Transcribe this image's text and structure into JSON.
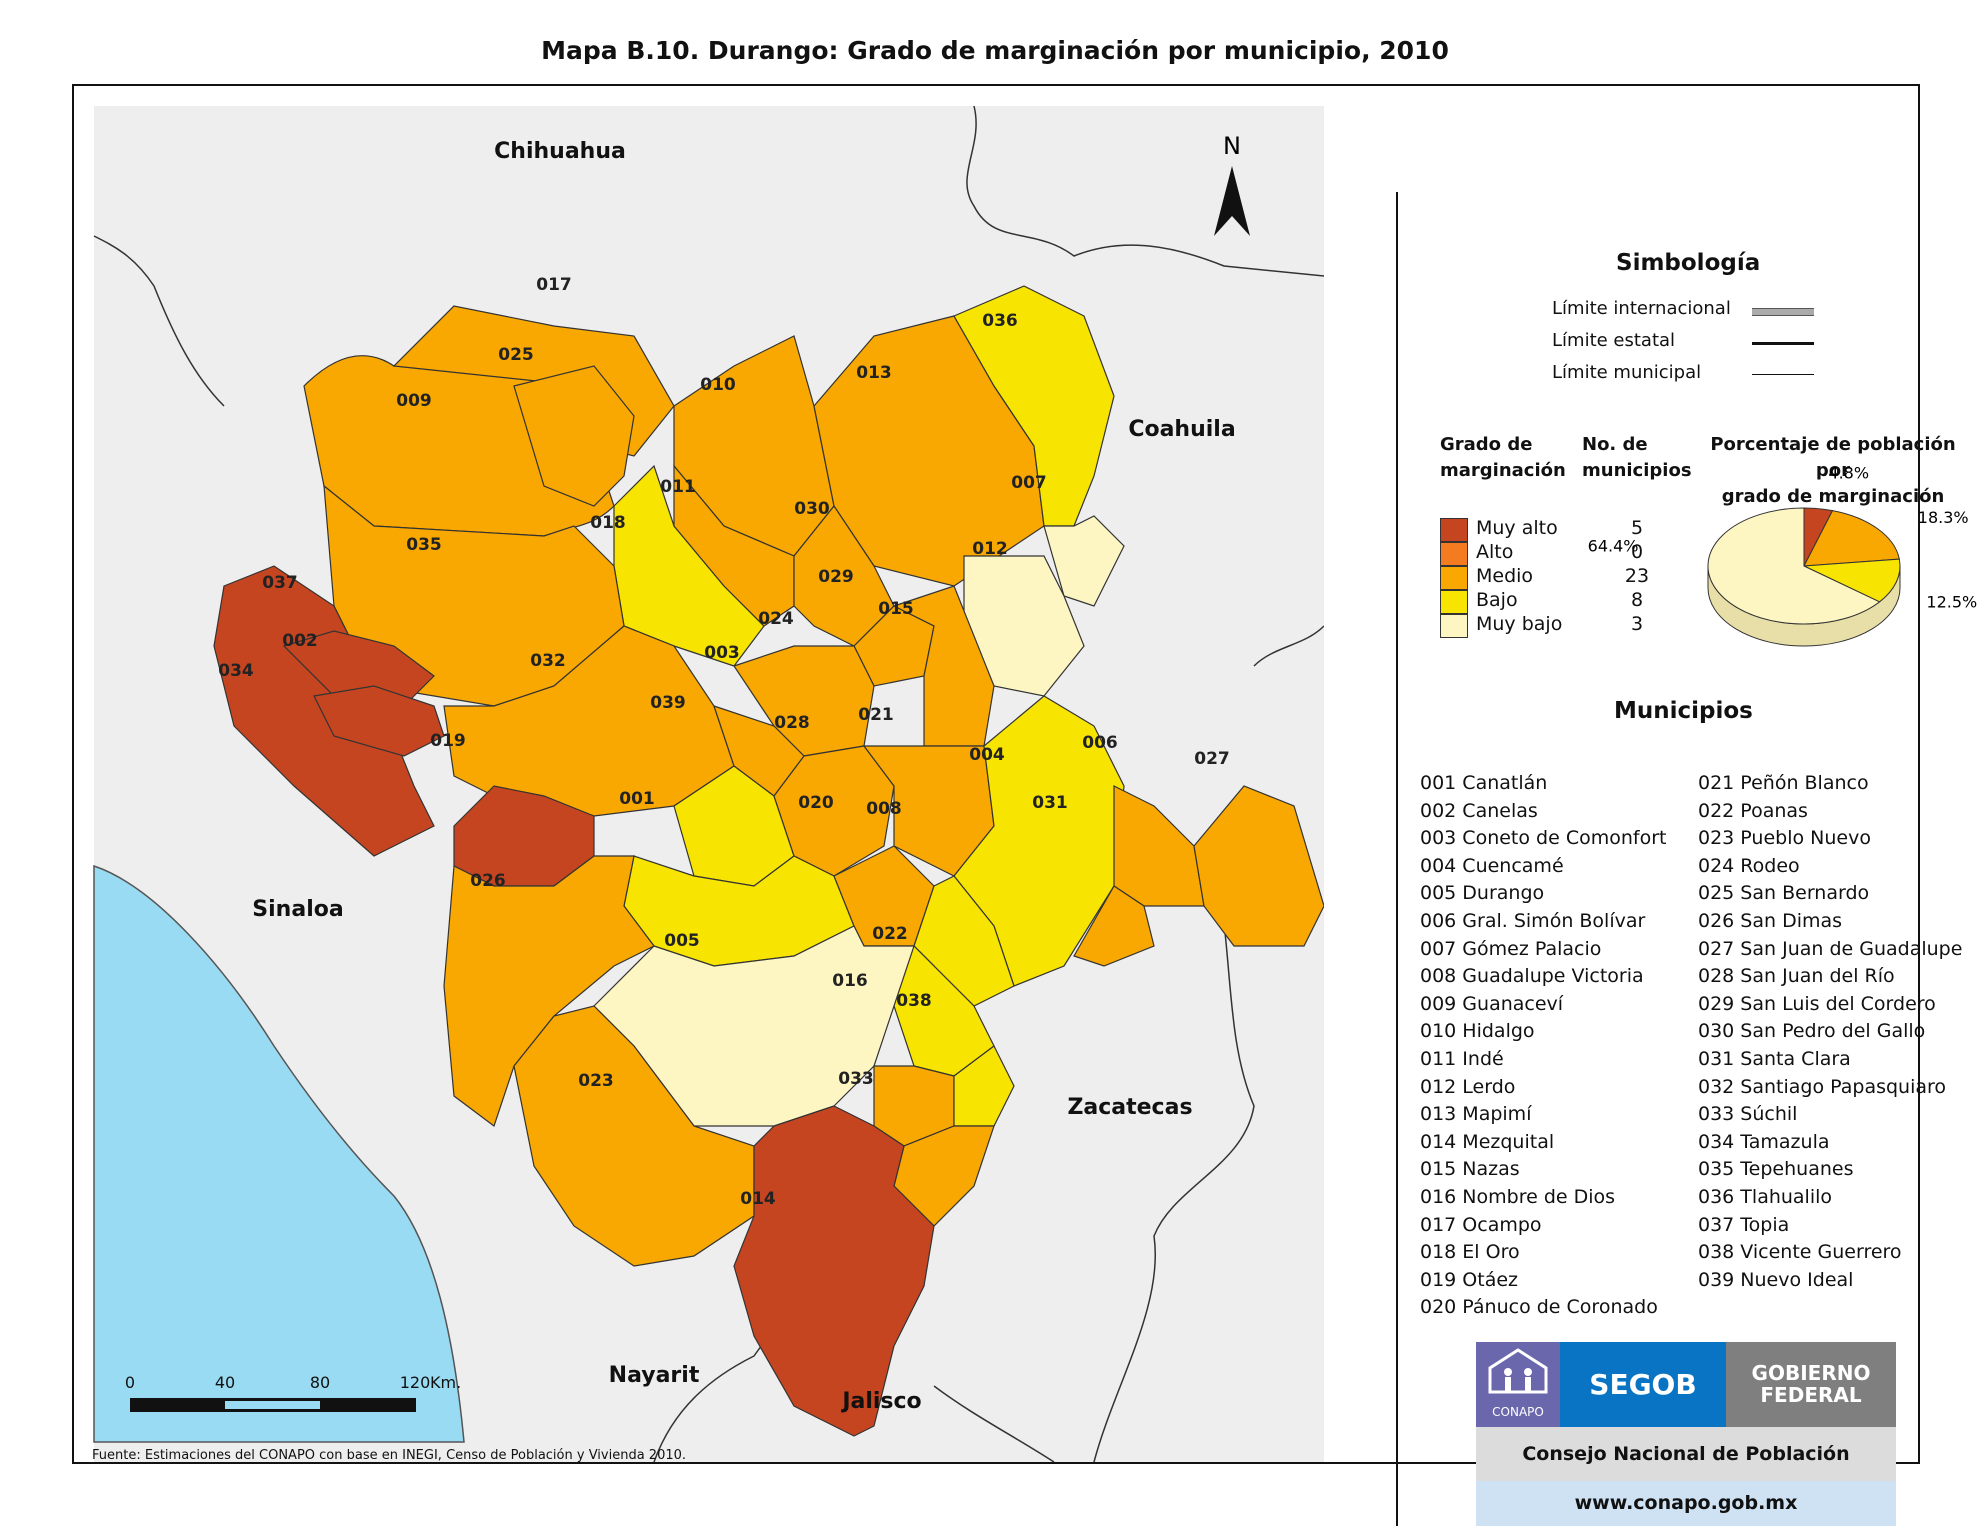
{
  "title": "Mapa B.10. Durango: Grado de marginación por municipio, 2010",
  "source": "Fuente: Estimaciones del CONAPO con base en INEGI, Censo de Población y Vivienda 2010.",
  "north_label": "N",
  "states": [
    "Chihuahua",
    "Coahuila",
    "Sinaloa",
    "Zacatecas",
    "Nayarit",
    "Jalisco"
  ],
  "scale_bar": {
    "ticks": [
      "0",
      "40",
      "80",
      "120"
    ],
    "unit": "Km."
  },
  "colors": {
    "muy_alto": "#c64521",
    "alto": "#f47b20",
    "medio": "#f8a800",
    "bajo": "#f7e400",
    "muy_bajo": "#fdf6c2",
    "sea": "#99dbf2"
  },
  "map_labels": [
    "001",
    "002",
    "003",
    "004",
    "005",
    "006",
    "007",
    "008",
    "009",
    "010",
    "011",
    "012",
    "013",
    "014",
    "015",
    "016",
    "017",
    "018",
    "019",
    "020",
    "021",
    "022",
    "023",
    "024",
    "025",
    "026",
    "027",
    "028",
    "029",
    "030",
    "031",
    "032",
    "033",
    "034",
    "035",
    "036",
    "037",
    "038",
    "039"
  ],
  "legend": {
    "title": "Simbología",
    "limits": [
      "Límite internacional",
      "Límite estatal",
      "Límite municipal"
    ],
    "col_grado": [
      "Grado de",
      "marginación"
    ],
    "col_no": [
      "No. de",
      "municipios"
    ],
    "col_pct": [
      "Porcentaje de población por",
      "grado de marginación"
    ],
    "rows": [
      {
        "label": "Muy alto",
        "count": "5",
        "color": "#c64521"
      },
      {
        "label": "Alto",
        "count": "0",
        "color": "#f47b20"
      },
      {
        "label": "Medio",
        "count": "23",
        "color": "#f8a800"
      },
      {
        "label": "Bajo",
        "count": "8",
        "color": "#f7e400"
      },
      {
        "label": "Muy bajo",
        "count": "3",
        "color": "#fdf6c2"
      }
    ],
    "pie": [
      {
        "label": "4.8%",
        "value": 4.8,
        "color": "#c64521"
      },
      {
        "label": "18.3%",
        "value": 18.3,
        "color": "#f8a800"
      },
      {
        "label": "12.5%",
        "value": 12.5,
        "color": "#f7e400"
      },
      {
        "label": "64.4%",
        "value": 64.4,
        "color": "#fdf6c2"
      }
    ]
  },
  "municipios_title": "Municipios",
  "municipios": [
    [
      "001",
      "Canatlán"
    ],
    [
      "002",
      "Canelas"
    ],
    [
      "003",
      "Coneto de Comonfort"
    ],
    [
      "004",
      "Cuencamé"
    ],
    [
      "005",
      "Durango"
    ],
    [
      "006",
      "Gral. Simón Bolívar"
    ],
    [
      "007",
      "Gómez Palacio"
    ],
    [
      "008",
      "Guadalupe Victoria"
    ],
    [
      "009",
      "Guanaceví"
    ],
    [
      "010",
      "Hidalgo"
    ],
    [
      "011",
      "Indé"
    ],
    [
      "012",
      "Lerdo"
    ],
    [
      "013",
      "Mapimí"
    ],
    [
      "014",
      "Mezquital"
    ],
    [
      "015",
      "Nazas"
    ],
    [
      "016",
      "Nombre de Dios"
    ],
    [
      "017",
      "Ocampo"
    ],
    [
      "018",
      "El Oro"
    ],
    [
      "019",
      "Otáez"
    ],
    [
      "020",
      "Pánuco de Coronado"
    ],
    [
      "021",
      "Peñón Blanco"
    ],
    [
      "022",
      "Poanas"
    ],
    [
      "023",
      "Pueblo Nuevo"
    ],
    [
      "024",
      "Rodeo"
    ],
    [
      "025",
      "San Bernardo"
    ],
    [
      "026",
      "San Dimas"
    ],
    [
      "027",
      "San Juan de Guadalupe"
    ],
    [
      "028",
      "San Juan del Río"
    ],
    [
      "029",
      "San Luis del Cordero"
    ],
    [
      "030",
      "San Pedro del Gallo"
    ],
    [
      "031",
      "Santa Clara"
    ],
    [
      "032",
      "Santiago Papasquiaro"
    ],
    [
      "033",
      "Súchil"
    ],
    [
      "034",
      "Tamazula"
    ],
    [
      "035",
      "Tepehuanes"
    ],
    [
      "036",
      "Tlahualilo"
    ],
    [
      "037",
      "Topia"
    ],
    [
      "038",
      "Vicente Guerrero"
    ],
    [
      "039",
      "Nuevo Ideal"
    ]
  ],
  "logos": {
    "conapo": "CONAPO",
    "segob": "SEGOB",
    "gobierno": "GOBIERNO",
    "federal": "FEDERAL",
    "consejo": "Consejo Nacional de Población",
    "web": "www.conapo.gob.mx"
  }
}
